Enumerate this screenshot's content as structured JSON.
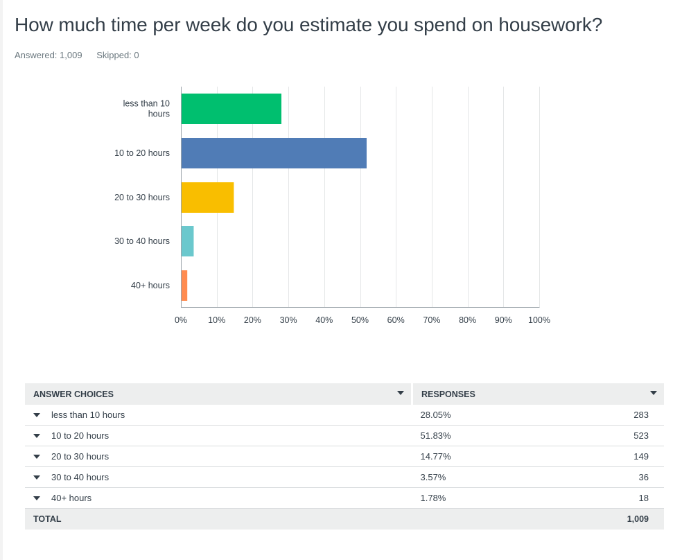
{
  "question": {
    "title": "How much time per week do you estimate you spend on housework?",
    "answered": "Answered: 1,009",
    "skipped": "Skipped: 0"
  },
  "chart_data": {
    "type": "bar",
    "orientation": "horizontal",
    "categories": [
      "less than 10 hours",
      "10 to 20 hours",
      "20 to 30 hours",
      "30 to 40 hours",
      "40+ hours"
    ],
    "category_lines": [
      [
        "less than 10",
        "hours"
      ],
      [
        "10 to 20 hours"
      ],
      [
        "20 to 30 hours"
      ],
      [
        "30 to 40 hours"
      ],
      [
        "40+ hours"
      ]
    ],
    "values": [
      28.05,
      51.83,
      14.77,
      3.57,
      1.78
    ],
    "colors": [
      "#00bf6f",
      "#507cb6",
      "#f9be00",
      "#6bc8cd",
      "#ff8b4f"
    ],
    "xlim": [
      0,
      100
    ],
    "xticks": [
      0,
      10,
      20,
      30,
      40,
      50,
      60,
      70,
      80,
      90,
      100
    ],
    "xtick_labels": [
      "0%",
      "10%",
      "20%",
      "30%",
      "40%",
      "50%",
      "60%",
      "70%",
      "80%",
      "90%",
      "100%"
    ],
    "grid": true,
    "title": "",
    "xlabel": "",
    "ylabel": ""
  },
  "table": {
    "headers": {
      "choices": "ANSWER CHOICES",
      "responses": "RESPONSES"
    },
    "rows": [
      {
        "choice": "less than 10 hours",
        "percent": "28.05%",
        "count": "283"
      },
      {
        "choice": "10 to 20 hours",
        "percent": "51.83%",
        "count": "523"
      },
      {
        "choice": "20 to 30 hours",
        "percent": "14.77%",
        "count": "149"
      },
      {
        "choice": "30 to 40 hours",
        "percent": "3.57%",
        "count": "36"
      },
      {
        "choice": "40+ hours",
        "percent": "1.78%",
        "count": "18"
      }
    ],
    "total_label": "TOTAL",
    "total_count": "1,009"
  },
  "icons": {
    "sort": "caret-down-icon",
    "row_toggle": "caret-down-icon"
  }
}
